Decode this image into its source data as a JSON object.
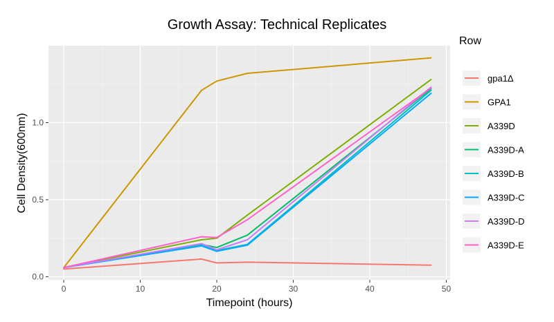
{
  "chart_data": {
    "type": "line",
    "title": "Growth Assay: Technical Replicates",
    "xlabel": "Timepoint (hours)",
    "ylabel": "Cell Density(600nm)",
    "xlim": [
      -2,
      50.5
    ],
    "ylim": [
      -0.02,
      1.5
    ],
    "x_ticks": [
      0,
      10,
      20,
      30,
      40,
      50
    ],
    "x_tick_labels": [
      "0",
      "10",
      "20",
      "30",
      "40",
      "50"
    ],
    "y_ticks": [
      0.0,
      0.5,
      1.0
    ],
    "y_tick_labels": [
      "0.0",
      "0.5",
      "1.0"
    ],
    "grid": true,
    "background": "#ebebeb",
    "legend": {
      "title": "Row",
      "position": "right"
    },
    "x": [
      0,
      18,
      20,
      24,
      48
    ],
    "series": [
      {
        "name": "gpa1Δ",
        "color": "#f8766d",
        "values": [
          0.05,
          0.115,
          0.09,
          0.095,
          0.075
        ]
      },
      {
        "name": "GPA1",
        "color": "#cd9600",
        "values": [
          0.06,
          1.21,
          1.27,
          1.32,
          1.42
        ]
      },
      {
        "name": "A339D",
        "color": "#7cae00",
        "values": [
          0.06,
          0.24,
          0.25,
          0.4,
          1.28
        ]
      },
      {
        "name": "A339D-A",
        "color": "#00be67",
        "values": [
          0.06,
          0.21,
          0.19,
          0.27,
          1.22
        ]
      },
      {
        "name": "A339D-B",
        "color": "#00bfc4",
        "values": [
          0.06,
          0.205,
          0.17,
          0.21,
          1.21
        ]
      },
      {
        "name": "A339D-C",
        "color": "#00a9ff",
        "values": [
          0.06,
          0.2,
          0.165,
          0.205,
          1.19
        ]
      },
      {
        "name": "A339D-D",
        "color": "#c77cff",
        "values": [
          0.06,
          0.215,
          0.175,
          0.24,
          1.23
        ]
      },
      {
        "name": "A339D-E",
        "color": "#ff61cc",
        "values": [
          0.06,
          0.26,
          0.255,
          0.37,
          1.225
        ]
      }
    ]
  }
}
